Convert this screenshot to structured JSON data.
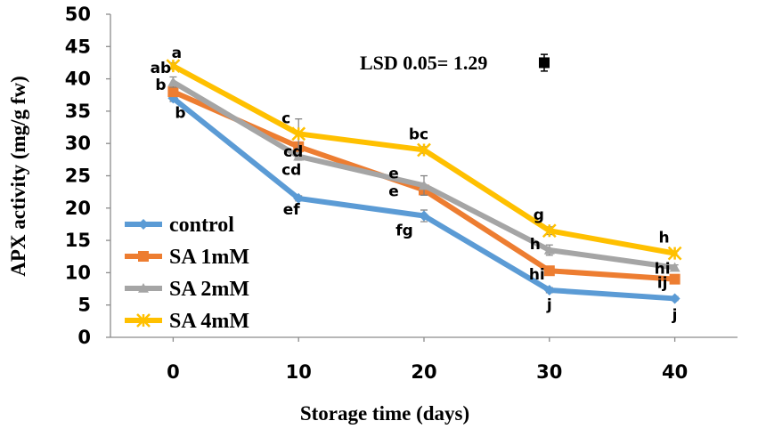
{
  "chart_data": {
    "type": "line",
    "title": "",
    "xlabel": "Storage time (days)",
    "ylabel": "APX activity (mg/g fw)",
    "x": [
      0,
      10,
      20,
      30,
      40
    ],
    "x_tick_labels": [
      "0",
      "10",
      "20",
      "30",
      "40"
    ],
    "xlim": [
      -5,
      45
    ],
    "ylim": [
      0,
      50
    ],
    "y_ticks": [
      0,
      5,
      10,
      15,
      20,
      25,
      30,
      35,
      40,
      45,
      50
    ],
    "grid": false,
    "legend_position": "bottom-left",
    "series": [
      {
        "name": "control",
        "color": "#5B9BD5",
        "marker": "diamond",
        "values": [
          37,
          21.5,
          18.8,
          7.3,
          6
        ],
        "errors": [
          0.5,
          0.4,
          0.9,
          0.4,
          0.3
        ],
        "labels": [
          "b",
          "ef",
          "fg",
          "j",
          "j"
        ]
      },
      {
        "name": "SA 1mM",
        "color": "#ED7D31",
        "marker": "square",
        "values": [
          38,
          29.5,
          22.8,
          10.3,
          9
        ],
        "errors": [
          0.5,
          0.5,
          0.8,
          0.6,
          0.4
        ],
        "labels": [
          "b",
          "cd",
          "e",
          "hi",
          "ij"
        ]
      },
      {
        "name": "SA 2mM",
        "color": "#A5A5A5",
        "marker": "triangle",
        "values": [
          39.5,
          28,
          23.5,
          13.5,
          10.8
        ],
        "errors": [
          0.8,
          0.6,
          1.5,
          0.8,
          0.4
        ],
        "labels": [
          "ab",
          "cd",
          "e",
          "h",
          "hi"
        ]
      },
      {
        "name": "SA 4mM",
        "color": "#FFC000",
        "marker": "star",
        "values": [
          42,
          31.5,
          29,
          16.5,
          13
        ],
        "errors": [
          0.5,
          2.3,
          0.5,
          0.6,
          0.3
        ],
        "labels": [
          "a",
          "c",
          "bc",
          "g",
          "h"
        ]
      }
    ],
    "annotation": {
      "text": "LSD 0.05= 1.29",
      "error_bar": 1.29,
      "center_value": 42.5
    }
  }
}
